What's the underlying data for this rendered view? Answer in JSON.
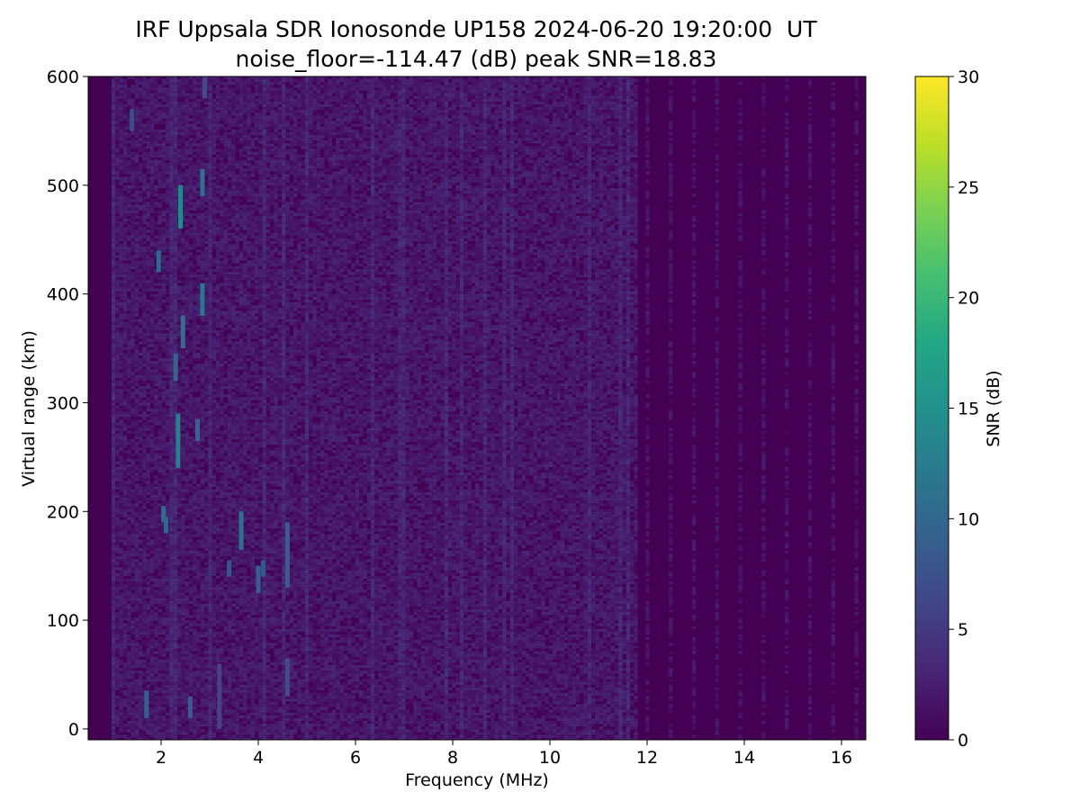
{
  "chart_data": {
    "type": "heatmap",
    "title": "IRF Uppsala SDR Ionosonde UP158 2024-06-20 19:20:00  UT",
    "subtitle": "noise_floor=-114.47 (dB) peak SNR=18.83",
    "xlabel": "Frequency (MHz)",
    "ylabel": "Virtual range (km)",
    "xlim": [
      0.5,
      16.5
    ],
    "ylim": [
      -10,
      600
    ],
    "x_ticks": [
      "2",
      "4",
      "6",
      "8",
      "10",
      "12",
      "14",
      "16"
    ],
    "x_tick_values": [
      2,
      4,
      6,
      8,
      10,
      12,
      14,
      16
    ],
    "y_ticks": [
      "0",
      "100",
      "200",
      "300",
      "400",
      "500",
      "600"
    ],
    "y_tick_values": [
      0,
      100,
      200,
      300,
      400,
      500,
      600
    ],
    "colorbar": {
      "label": "SNR (dB)",
      "range": [
        0,
        30
      ],
      "ticks": [
        "0",
        "5",
        "10",
        "15",
        "20",
        "25",
        "30"
      ],
      "tick_values": [
        0,
        5,
        10,
        15,
        20,
        25,
        30
      ],
      "colormap": "viridis"
    },
    "grid": false,
    "echoes": [
      {
        "f": 1.7,
        "r0": 10,
        "r1": 35,
        "snr": 9
      },
      {
        "f": 2.05,
        "r0": 190,
        "r1": 205,
        "snr": 11
      },
      {
        "f": 2.1,
        "r0": 180,
        "r1": 195,
        "snr": 10
      },
      {
        "f": 2.35,
        "r0": 240,
        "r1": 290,
        "snr": 13
      },
      {
        "f": 2.3,
        "r0": 320,
        "r1": 345,
        "snr": 10
      },
      {
        "f": 2.45,
        "r0": 350,
        "r1": 380,
        "snr": 11
      },
      {
        "f": 2.4,
        "r0": 460,
        "r1": 500,
        "snr": 14
      },
      {
        "f": 1.95,
        "r0": 420,
        "r1": 440,
        "snr": 10
      },
      {
        "f": 2.85,
        "r0": 380,
        "r1": 410,
        "snr": 12
      },
      {
        "f": 2.85,
        "r0": 490,
        "r1": 515,
        "snr": 11
      },
      {
        "f": 2.75,
        "r0": 265,
        "r1": 285,
        "snr": 10
      },
      {
        "f": 2.6,
        "r0": 10,
        "r1": 30,
        "snr": 9
      },
      {
        "f": 3.65,
        "r0": 165,
        "r1": 200,
        "snr": 11
      },
      {
        "f": 3.4,
        "r0": 140,
        "r1": 155,
        "snr": 8
      },
      {
        "f": 4.0,
        "r0": 125,
        "r1": 150,
        "snr": 9
      },
      {
        "f": 4.1,
        "r0": 140,
        "r1": 155,
        "snr": 8
      },
      {
        "f": 4.6,
        "r0": 130,
        "r1": 190,
        "snr": 9
      },
      {
        "f": 4.6,
        "r0": 30,
        "r1": 65,
        "snr": 7
      },
      {
        "f": 3.2,
        "r0": 0,
        "r1": 60,
        "snr": 6
      },
      {
        "f": 2.9,
        "r0": 580,
        "r1": 600,
        "snr": 7
      },
      {
        "f": 1.4,
        "r0": 550,
        "r1": 570,
        "snr": 7
      }
    ]
  }
}
